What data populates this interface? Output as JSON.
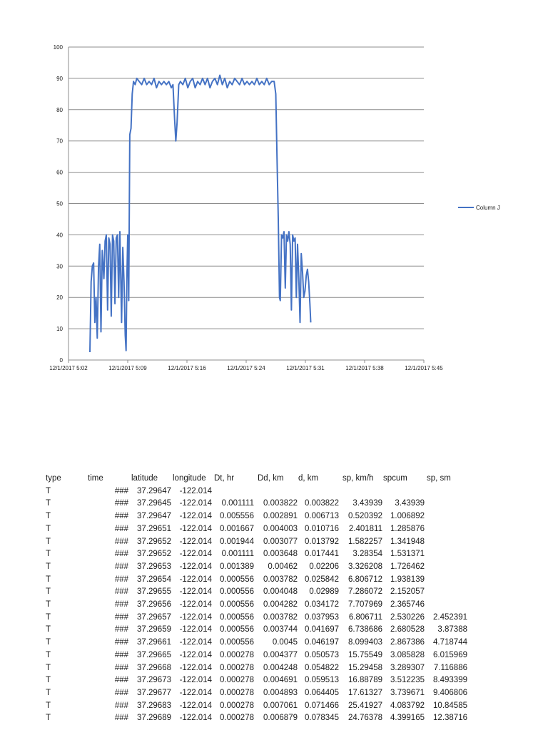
{
  "chart_data": {
    "type": "line",
    "title": "",
    "xlabel": "",
    "ylabel": "",
    "ylim": [
      0,
      100
    ],
    "y_ticks": [
      "0",
      "10",
      "20",
      "30",
      "40",
      "50",
      "60",
      "70",
      "80",
      "90",
      "100"
    ],
    "x_ticks": [
      "12/1/2017 5:02",
      "12/1/2017 5:09",
      "12/1/2017 5:16",
      "12/1/2017 5:24",
      "12/1/2017 5:31",
      "12/1/2017 5:38",
      "12/1/2017 5:45"
    ],
    "x_tick_minutes": [
      302.4,
      309.6,
      316.8,
      324.0,
      331.2,
      338.4,
      345.6
    ],
    "xlim_minutes": [
      302.4,
      345.6
    ],
    "grid": true,
    "legend": "right",
    "series": [
      {
        "name": "Column J",
        "color": "#4472c4",
        "points": [
          [
            305.0,
            2.5
          ],
          [
            305.15,
            25
          ],
          [
            305.3,
            30
          ],
          [
            305.45,
            31
          ],
          [
            305.6,
            12
          ],
          [
            305.75,
            20
          ],
          [
            305.9,
            7
          ],
          [
            306.05,
            30
          ],
          [
            306.2,
            37
          ],
          [
            306.35,
            9
          ],
          [
            306.5,
            35
          ],
          [
            306.7,
            26
          ],
          [
            306.85,
            38
          ],
          [
            307.0,
            40
          ],
          [
            307.15,
            16
          ],
          [
            307.3,
            39
          ],
          [
            307.45,
            37
          ],
          [
            307.6,
            14
          ],
          [
            307.75,
            40
          ],
          [
            307.9,
            38
          ],
          [
            308.05,
            18
          ],
          [
            308.2,
            39
          ],
          [
            308.35,
            40
          ],
          [
            308.5,
            20
          ],
          [
            308.65,
            41
          ],
          [
            308.85,
            12
          ],
          [
            309.0,
            36
          ],
          [
            309.15,
            25
          ],
          [
            309.3,
            8
          ],
          [
            309.4,
            3
          ],
          [
            309.5,
            26
          ],
          [
            309.6,
            40
          ],
          [
            309.72,
            19
          ],
          [
            309.85,
            72
          ],
          [
            310.0,
            74
          ],
          [
            310.15,
            85
          ],
          [
            310.3,
            89
          ],
          [
            310.5,
            88
          ],
          [
            310.7,
            90
          ],
          [
            311.0,
            89
          ],
          [
            311.3,
            88
          ],
          [
            311.6,
            90
          ],
          [
            311.9,
            88
          ],
          [
            312.2,
            89
          ],
          [
            312.5,
            88
          ],
          [
            312.8,
            90
          ],
          [
            313.1,
            87
          ],
          [
            313.4,
            89
          ],
          [
            313.7,
            88
          ],
          [
            314.0,
            89
          ],
          [
            314.3,
            88
          ],
          [
            314.6,
            89
          ],
          [
            314.9,
            87
          ],
          [
            315.1,
            88
          ],
          [
            315.3,
            77
          ],
          [
            315.45,
            70
          ],
          [
            315.6,
            76
          ],
          [
            315.8,
            88
          ],
          [
            316.0,
            89
          ],
          [
            316.3,
            88
          ],
          [
            316.6,
            90
          ],
          [
            316.9,
            87
          ],
          [
            317.2,
            89
          ],
          [
            317.5,
            90
          ],
          [
            317.8,
            87
          ],
          [
            318.1,
            89
          ],
          [
            318.4,
            88
          ],
          [
            318.7,
            90
          ],
          [
            319.0,
            88
          ],
          [
            319.3,
            90
          ],
          [
            319.6,
            87
          ],
          [
            319.9,
            89
          ],
          [
            320.2,
            90
          ],
          [
            320.5,
            88
          ],
          [
            320.8,
            91
          ],
          [
            321.1,
            88
          ],
          [
            321.4,
            90
          ],
          [
            321.7,
            87
          ],
          [
            322.0,
            89
          ],
          [
            322.3,
            88
          ],
          [
            322.6,
            90
          ],
          [
            322.9,
            89
          ],
          [
            323.2,
            88
          ],
          [
            323.5,
            90
          ],
          [
            323.8,
            88
          ],
          [
            324.1,
            89
          ],
          [
            324.4,
            88
          ],
          [
            324.7,
            89
          ],
          [
            325.0,
            88
          ],
          [
            325.3,
            90
          ],
          [
            325.6,
            88
          ],
          [
            325.9,
            89
          ],
          [
            326.2,
            88
          ],
          [
            326.5,
            90
          ],
          [
            326.8,
            88
          ],
          [
            327.1,
            89
          ],
          [
            327.4,
            89
          ],
          [
            327.6,
            85
          ],
          [
            327.75,
            65
          ],
          [
            327.9,
            45
          ],
          [
            328.05,
            20
          ],
          [
            328.15,
            19
          ],
          [
            328.3,
            40
          ],
          [
            328.45,
            39
          ],
          [
            328.6,
            41
          ],
          [
            328.75,
            23
          ],
          [
            328.9,
            40
          ],
          [
            329.05,
            38
          ],
          [
            329.2,
            41
          ],
          [
            329.35,
            37
          ],
          [
            329.5,
            16
          ],
          [
            329.65,
            40
          ],
          [
            329.8,
            38
          ],
          [
            329.95,
            39
          ],
          [
            330.1,
            20
          ],
          [
            330.25,
            37
          ],
          [
            330.4,
            26
          ],
          [
            330.55,
            12
          ],
          [
            330.7,
            34
          ],
          [
            330.85,
            28
          ],
          [
            331.0,
            20
          ],
          [
            331.15,
            22
          ],
          [
            331.3,
            27
          ],
          [
            331.45,
            29
          ],
          [
            331.6,
            25
          ],
          [
            331.75,
            18
          ],
          [
            331.85,
            12
          ]
        ]
      }
    ]
  },
  "sheet": {
    "headers": [
      "type",
      "time",
      "latitude",
      "longitude",
      "Dt, hr",
      "Dd, km",
      "d, km",
      "sp, km/h",
      "spcum",
      "sp, sm"
    ],
    "rows": [
      [
        "T",
        "###",
        "37.29647",
        "-122.014",
        "",
        "",
        "",
        "",
        "",
        ""
      ],
      [
        "T",
        "###",
        "37.29645",
        "-122.014",
        "0.001111",
        "0.003822",
        "0.003822",
        "3.43939",
        "3.43939",
        ""
      ],
      [
        "T",
        "###",
        "37.29647",
        "-122.014",
        "0.005556",
        "0.002891",
        "0.006713",
        "0.520392",
        "1.006892",
        ""
      ],
      [
        "T",
        "###",
        "37.29651",
        "-122.014",
        "0.001667",
        "0.004003",
        "0.010716",
        "2.401811",
        "1.285876",
        ""
      ],
      [
        "T",
        "###",
        "37.29652",
        "-122.014",
        "0.001944",
        "0.003077",
        "0.013792",
        "1.582257",
        "1.341948",
        ""
      ],
      [
        "T",
        "###",
        "37.29652",
        "-122.014",
        "0.001111",
        "0.003648",
        "0.017441",
        "3.28354",
        "1.531371",
        ""
      ],
      [
        "T",
        "###",
        "37.29653",
        "-122.014",
        "0.001389",
        "0.00462",
        "0.02206",
        "3.326208",
        "1.726462",
        ""
      ],
      [
        "T",
        "###",
        "37.29654",
        "-122.014",
        "0.000556",
        "0.003782",
        "0.025842",
        "6.806712",
        "1.938139",
        ""
      ],
      [
        "T",
        "###",
        "37.29655",
        "-122.014",
        "0.000556",
        "0.004048",
        "0.02989",
        "7.286072",
        "2.152057",
        ""
      ],
      [
        "T",
        "###",
        "37.29656",
        "-122.014",
        "0.000556",
        "0.004282",
        "0.034172",
        "7.707969",
        "2.365746",
        ""
      ],
      [
        "T",
        "###",
        "37.29657",
        "-122.014",
        "0.000556",
        "0.003782",
        "0.037953",
        "6.806711",
        "2.530226",
        "2.452391"
      ],
      [
        "T",
        "###",
        "37.29659",
        "-122.014",
        "0.000556",
        "0.003744",
        "0.041697",
        "6.738686",
        "2.680528",
        "3.87388"
      ],
      [
        "T",
        "###",
        "37.29661",
        "-122.014",
        "0.000556",
        "0.0045",
        "0.046197",
        "8.099403",
        "2.867386",
        "4.718744"
      ],
      [
        "T",
        "###",
        "37.29665",
        "-122.014",
        "0.000278",
        "0.004377",
        "0.050573",
        "15.75549",
        "3.085828",
        "6.015969"
      ],
      [
        "T",
        "###",
        "37.29668",
        "-122.014",
        "0.000278",
        "0.004248",
        "0.054822",
        "15.29458",
        "3.289307",
        "7.116886"
      ],
      [
        "T",
        "###",
        "37.29673",
        "-122.014",
        "0.000278",
        "0.004691",
        "0.059513",
        "16.88789",
        "3.512235",
        "8.493399"
      ],
      [
        "T",
        "###",
        "37.29677",
        "-122.014",
        "0.000278",
        "0.004893",
        "0.064405",
        "17.61327",
        "3.739671",
        "9.406806"
      ],
      [
        "T",
        "###",
        "37.29683",
        "-122.014",
        "0.000278",
        "0.007061",
        "0.071466",
        "25.41927",
        "4.083792",
        "10.84585"
      ],
      [
        "T",
        "###",
        "37.29689",
        "-122.014",
        "0.000278",
        "0.006879",
        "0.078345",
        "24.76378",
        "4.399165",
        "12.38716"
      ]
    ]
  }
}
